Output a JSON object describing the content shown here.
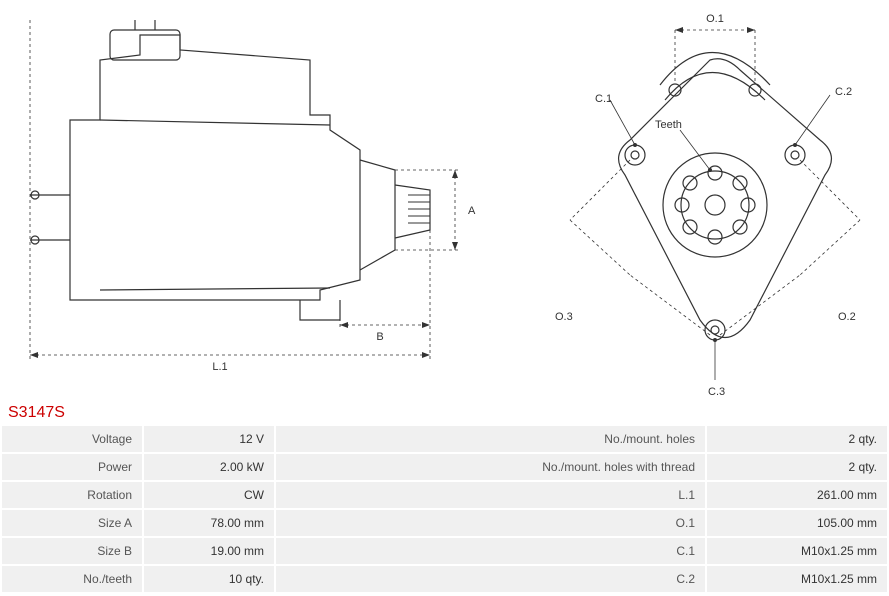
{
  "part_number": "S3147S",
  "diagram": {
    "stroke_color": "#333333",
    "stroke_width": 1.2,
    "dash_pattern": "3,3",
    "labels": {
      "L1": "L.1",
      "A": "A",
      "B": "B",
      "O1": "O.1",
      "O2": "O.2",
      "O3": "O.3",
      "C1": "C.1",
      "C2": "C.2",
      "C3": "C.3",
      "Teeth": "Teeth"
    }
  },
  "specs_left": [
    {
      "label": "Voltage",
      "value": "12 V"
    },
    {
      "label": "Power",
      "value": "2.00 kW"
    },
    {
      "label": "Rotation",
      "value": "CW"
    },
    {
      "label": "Size A",
      "value": "78.00 mm"
    },
    {
      "label": "Size B",
      "value": "19.00 mm"
    },
    {
      "label": "No./teeth",
      "value": "10 qty."
    }
  ],
  "specs_right": [
    {
      "label": "No./mount. holes",
      "value": "2 qty."
    },
    {
      "label": "No./mount. holes with thread",
      "value": "2 qty."
    },
    {
      "label": "L.1",
      "value": "261.00 mm"
    },
    {
      "label": "O.1",
      "value": "105.00 mm"
    },
    {
      "label": "C.1",
      "value": "M10x1.25 mm"
    },
    {
      "label": "C.2",
      "value": "M10x1.25 mm"
    }
  ],
  "table_style": {
    "cell_bg": "#f0f0f0",
    "label_color": "#555555",
    "font_size": 12
  },
  "title_style": {
    "color": "#cc0000",
    "font_size": 16
  }
}
